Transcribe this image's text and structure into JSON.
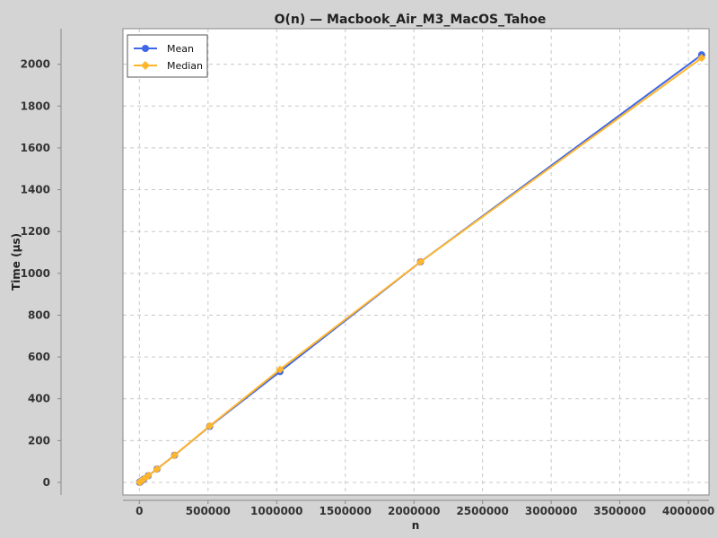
{
  "chart_data": {
    "type": "line",
    "title": "O(n) — Macbook_Air_M3_MacOS_Tahoe",
    "xlabel": "n",
    "ylabel": "Time (µs)",
    "xlim": [
      -120000,
      4150000
    ],
    "ylim": [
      -60,
      2170
    ],
    "x_ticks": [
      0,
      500000,
      1000000,
      1500000,
      2000000,
      2500000,
      3000000,
      3500000,
      4000000
    ],
    "y_ticks": [
      0,
      200,
      400,
      600,
      800,
      1000,
      1200,
      1400,
      1600,
      1800,
      2000
    ],
    "grid": true,
    "legend_position": "top-left",
    "x": [
      1000,
      2000,
      4000,
      8000,
      16000,
      32000,
      64000,
      128000,
      256000,
      512000,
      1024000,
      2048000,
      4096000
    ],
    "series": [
      {
        "name": "Mean",
        "color": "#3f66e6",
        "marker": "circle",
        "values": [
          0.5,
          1,
          2,
          4,
          8,
          16,
          32,
          64,
          130,
          268,
          530,
          1055,
          2045
        ]
      },
      {
        "name": "Median",
        "color": "#ffb62d",
        "marker": "diamond",
        "values": [
          0.5,
          1,
          2,
          4,
          8,
          16,
          32,
          64,
          130,
          270,
          540,
          1055,
          2030
        ]
      }
    ]
  }
}
